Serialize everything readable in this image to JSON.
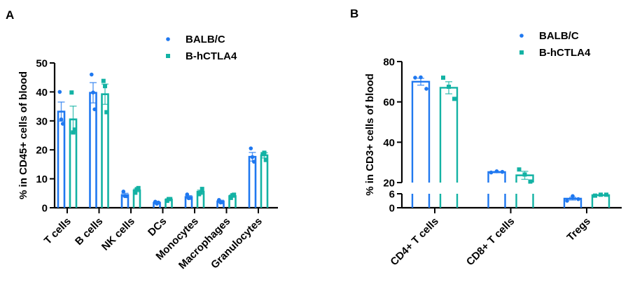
{
  "colors": {
    "balb": "#1f78f0",
    "hctla4": "#13b2a4",
    "axis": "#000000"
  },
  "chart_data": [
    {
      "panel": "A",
      "type": "bar",
      "ylabel": "% in CD45+ cells of blood",
      "xlabel": "",
      "ylim": [
        0,
        50
      ],
      "yticks": [
        0,
        10,
        20,
        30,
        40,
        50
      ],
      "grid": false,
      "legend_position": "top-right",
      "categories": [
        "T cells",
        "B cells",
        "NK cells",
        "DCs",
        "Monocytes",
        "Macrophages",
        "Granulocytes"
      ],
      "series": [
        {
          "name": "BALB/C",
          "marker": "circle",
          "values": [
            33.2,
            39.7,
            4.4,
            1.7,
            3.7,
            2.2,
            17.6
          ],
          "sem": [
            3.3,
            3.5,
            0.6,
            0.3,
            0.5,
            0.4,
            1.5
          ],
          "points": [
            [
              40.0,
              30.5,
              29.0
            ],
            [
              46.0,
              39.8,
              34.0
            ],
            [
              5.6,
              4.0,
              4.0
            ],
            [
              2.1,
              1.4,
              1.8
            ],
            [
              4.6,
              3.3,
              3.4
            ],
            [
              2.7,
              1.8,
              1.9
            ],
            [
              20.5,
              17.5,
              15.9
            ]
          ]
        },
        {
          "name": "B-hCTLA4",
          "marker": "square",
          "values": [
            30.5,
            39.2,
            6.0,
            2.8,
            5.5,
            4.0,
            18.1
          ],
          "sem": [
            4.6,
            3.5,
            0.5,
            0.3,
            0.6,
            0.4,
            0.9
          ],
          "points": [
            [
              39.8,
              26.0,
              27.0
            ],
            [
              43.8,
              42.0,
              33.0
            ],
            [
              5.2,
              6.4,
              6.8
            ],
            [
              2.4,
              3.0,
              3.0
            ],
            [
              4.7,
              5.2,
              6.5
            ],
            [
              3.4,
              4.3,
              4.5
            ],
            [
              18.5,
              19.0,
              16.5
            ]
          ]
        }
      ]
    },
    {
      "panel": "B",
      "type": "bar",
      "ylabel": "% in CD3+ cells of blood",
      "xlabel": "",
      "ylim": [
        0,
        80
      ],
      "y_axis_break": [
        6,
        20
      ],
      "yticks": [
        0,
        6,
        20,
        40,
        60,
        80
      ],
      "grid": false,
      "legend_position": "top-right",
      "categories": [
        "CD4+ T cells",
        "CD8+ T cells",
        "Tregs"
      ],
      "series": [
        {
          "name": "BALB/C",
          "marker": "circle",
          "values": [
            70.0,
            25.2,
            3.9
          ],
          "sem": [
            1.7,
            0.3,
            0.6
          ],
          "points": [
            [
              72.0,
              72.2,
              66.5
            ],
            [
              25.0,
              25.6,
              25.3
            ],
            [
              3.0,
              5.0,
              3.7
            ]
          ]
        },
        {
          "name": "B-hCTLA4",
          "marker": "square",
          "values": [
            67.0,
            23.6,
            5.4
          ],
          "sem": [
            3.0,
            2.0,
            0.2
          ],
          "points": [
            [
              72.0,
              67.5,
              61.5
            ],
            [
              26.5,
              24.0,
              20.5
            ],
            [
              5.2,
              5.6,
              5.6
            ]
          ]
        }
      ]
    }
  ]
}
